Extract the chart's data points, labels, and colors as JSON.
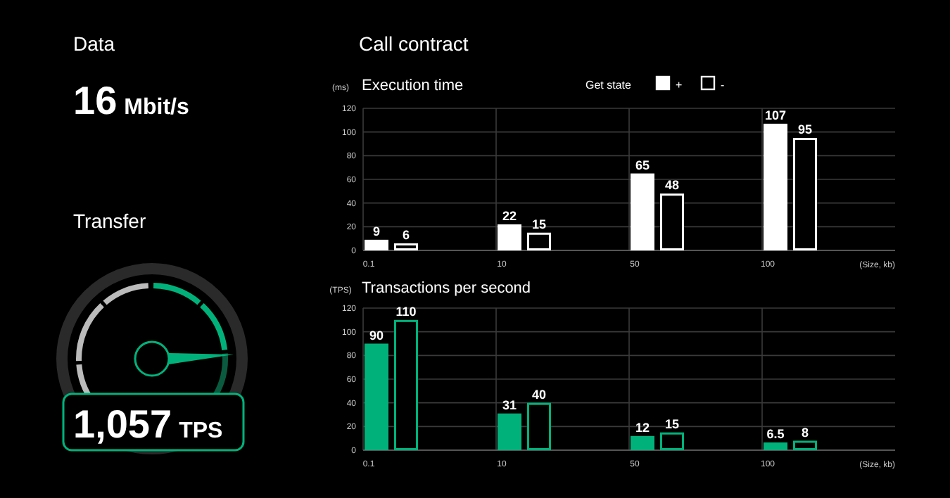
{
  "chart_data": [
    {
      "type": "other",
      "title": "Data",
      "annotations": [
        "16",
        "Mbit/s"
      ]
    },
    {
      "type": "other",
      "title": "Transfer",
      "annotations": [
        "1,057",
        "TPS"
      ]
    },
    {
      "type": "bar",
      "title": "Call contract",
      "subtitle": "Execution time",
      "ylabel": "(ms)",
      "xlabel": "(Size, kb)",
      "legend_title": "Get state",
      "legend": "top",
      "categories": [
        "0.1",
        "10",
        "50",
        "100"
      ],
      "series": [
        {
          "name": "+",
          "color": "#ffffff",
          "values": [
            9,
            22,
            65,
            107
          ]
        },
        {
          "name": "-",
          "color": "#ffffff",
          "values": [
            6,
            15,
            48,
            95
          ]
        }
      ],
      "ylim": [
        0,
        120
      ],
      "yticks": [
        0,
        20,
        40,
        60,
        80,
        100,
        120
      ],
      "grid": true,
      "data_labels": true
    },
    {
      "type": "bar",
      "subtitle": "Transactions per second",
      "ylabel": "(TPS)",
      "xlabel": "(Size, kb)",
      "categories": [
        "0.1",
        "10",
        "50",
        "100"
      ],
      "series": [
        {
          "color": "#00b27a",
          "values": [
            90,
            31,
            12,
            6.5
          ]
        },
        {
          "color": "#00b27a",
          "values": [
            110,
            40,
            15,
            8
          ]
        }
      ],
      "ylim": [
        0,
        120
      ],
      "yticks": [
        0,
        20,
        40,
        60,
        80,
        100,
        120
      ],
      "grid": true,
      "data_labels": true
    }
  ]
}
